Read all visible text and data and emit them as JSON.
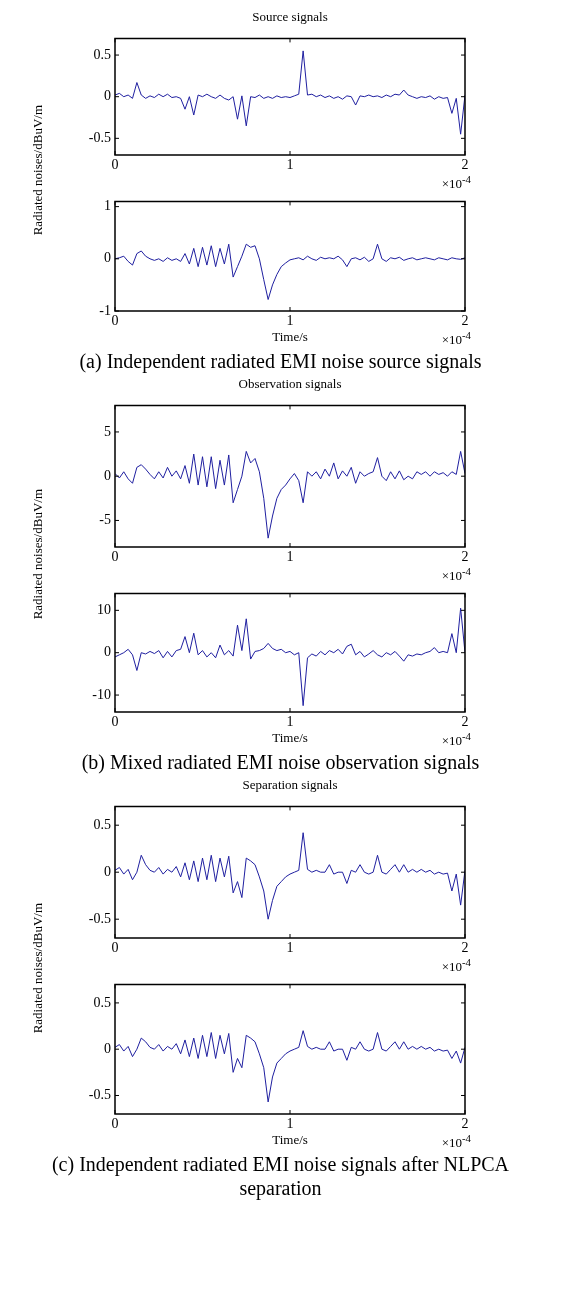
{
  "chart_data": [
    {
      "type": "line",
      "title": "Source signals",
      "ylabel": "Radiated noises/dBuV/m",
      "color": "#1f1fa0",
      "xlim": [
        0,
        2
      ],
      "xticks": [
        0,
        1,
        2
      ],
      "ylim": [
        -0.7,
        0.7
      ],
      "yticks": [
        -0.5,
        0,
        0.5
      ],
      "annotations": [
        "×10$^{-4}$"
      ],
      "x": [
        0,
        0.025,
        0.05,
        0.075,
        0.1,
        0.125,
        0.15,
        0.175,
        0.2,
        0.225,
        0.25,
        0.275,
        0.3,
        0.325,
        0.35,
        0.375,
        0.4,
        0.425,
        0.45,
        0.475,
        0.5,
        0.525,
        0.55,
        0.575,
        0.6,
        0.625,
        0.65,
        0.675,
        0.7,
        0.725,
        0.75,
        0.775,
        0.8,
        0.825,
        0.85,
        0.875,
        0.9,
        0.925,
        0.95,
        0.975,
        1,
        1.025,
        1.05,
        1.075,
        1.1,
        1.125,
        1.15,
        1.175,
        1.2,
        1.225,
        1.25,
        1.275,
        1.3,
        1.325,
        1.35,
        1.375,
        1.4,
        1.425,
        1.45,
        1.475,
        1.5,
        1.525,
        1.55,
        1.575,
        1.6,
        1.625,
        1.65,
        1.675,
        1.7,
        1.725,
        1.75,
        1.775,
        1.8,
        1.825,
        1.85,
        1.875,
        1.9,
        1.925,
        1.95,
        1.975,
        2
      ],
      "values": [
        0.02,
        0.04,
        0.0,
        0.02,
        -0.02,
        0.17,
        0.02,
        -0.02,
        0.01,
        -0.01,
        0.03,
        0.0,
        0.03,
        -0.01,
        0.0,
        -0.02,
        -0.15,
        0.0,
        -0.22,
        0.02,
        0.0,
        0.03,
        0.0,
        -0.02,
        0.02,
        -0.02,
        -0.04,
        0.0,
        -0.27,
        0.01,
        -0.35,
        0.0,
        -0.01,
        0.02,
        -0.02,
        0.0,
        -0.02,
        0.01,
        -0.01,
        0.0,
        -0.01,
        0.01,
        0.03,
        0.55,
        0.02,
        0.03,
        0.0,
        0.02,
        -0.01,
        0.01,
        -0.02,
        0.0,
        -0.03,
        0.01,
        0.0,
        -0.1,
        0.01,
        0.0,
        0.02,
        0.0,
        0.01,
        -0.01,
        0.02,
        0.0,
        0.03,
        0.02,
        0.08,
        0.02,
        0.0,
        -0.02,
        0.0,
        -0.01,
        0.01,
        -0.03,
        0.0,
        -0.02,
        -0.01,
        -0.2,
        -0.02,
        -0.45,
        0.02
      ]
    },
    {
      "type": "line",
      "xlabel": "Time/s",
      "color": "#1f1fa0",
      "xlim": [
        0,
        2
      ],
      "xticks": [
        0,
        1,
        2
      ],
      "ylim": [
        -1,
        1.1
      ],
      "yticks": [
        -1,
        0,
        1
      ],
      "annotations": [
        "×10$^{-4}$",
        "(a) Independent radiated EMI noise source signals"
      ],
      "x": [
        0,
        0.025,
        0.05,
        0.075,
        0.1,
        0.125,
        0.15,
        0.175,
        0.2,
        0.225,
        0.25,
        0.275,
        0.3,
        0.325,
        0.35,
        0.375,
        0.4,
        0.425,
        0.45,
        0.475,
        0.5,
        0.525,
        0.55,
        0.575,
        0.6,
        0.625,
        0.65,
        0.675,
        0.7,
        0.725,
        0.75,
        0.775,
        0.8,
        0.825,
        0.85,
        0.875,
        0.9,
        0.925,
        0.95,
        0.975,
        1,
        1.025,
        1.05,
        1.075,
        1.1,
        1.125,
        1.15,
        1.175,
        1.2,
        1.225,
        1.25,
        1.275,
        1.3,
        1.325,
        1.35,
        1.375,
        1.4,
        1.425,
        1.45,
        1.475,
        1.5,
        1.525,
        1.55,
        1.575,
        1.6,
        1.625,
        1.65,
        1.675,
        1.7,
        1.725,
        1.75,
        1.775,
        1.8,
        1.825,
        1.85,
        1.875,
        1.9,
        1.925,
        1.95,
        1.975,
        2
      ],
      "values": [
        0.0,
        0.02,
        0.05,
        -0.05,
        -0.12,
        0.1,
        0.15,
        0.05,
        0.0,
        -0.03,
        0.0,
        -0.05,
        0.02,
        -0.03,
        0.0,
        -0.05,
        0.1,
        -0.1,
        0.2,
        -0.15,
        0.22,
        -0.12,
        0.25,
        -0.15,
        0.2,
        -0.1,
        0.28,
        -0.35,
        -0.15,
        0.05,
        0.28,
        0.22,
        0.25,
        0.0,
        -0.4,
        -0.78,
        -0.5,
        -0.3,
        -0.15,
        -0.08,
        -0.02,
        0.0,
        0.02,
        -0.02,
        0.05,
        0.0,
        -0.03,
        0.03,
        0.0,
        0.02,
        0.0,
        0.05,
        -0.02,
        -0.15,
        0.0,
        0.02,
        -0.02,
        0.03,
        -0.05,
        0.0,
        0.28,
        0.0,
        -0.05,
        0.02,
        0.0,
        0.03,
        -0.03,
        0.0,
        0.02,
        -0.02,
        0.0,
        0.02,
        0.0,
        -0.02,
        0.02,
        0.0,
        -0.02,
        0.02,
        0.0,
        -0.01,
        0.02
      ]
    },
    {
      "type": "line",
      "title": "Observation signals",
      "ylabel": "Radiated noises/dBuV/m",
      "color": "#1f1fa0",
      "xlim": [
        0,
        2
      ],
      "xticks": [
        0,
        1,
        2
      ],
      "ylim": [
        -8,
        8
      ],
      "yticks": [
        -5,
        0,
        5
      ],
      "annotations": [
        "×10$^{-4}$"
      ],
      "x": [
        0,
        0.025,
        0.05,
        0.075,
        0.1,
        0.125,
        0.15,
        0.175,
        0.2,
        0.225,
        0.25,
        0.275,
        0.3,
        0.325,
        0.35,
        0.375,
        0.4,
        0.425,
        0.45,
        0.475,
        0.5,
        0.525,
        0.55,
        0.575,
        0.6,
        0.625,
        0.65,
        0.675,
        0.7,
        0.725,
        0.75,
        0.775,
        0.8,
        0.825,
        0.85,
        0.875,
        0.9,
        0.925,
        0.95,
        0.975,
        1,
        1.025,
        1.05,
        1.075,
        1.1,
        1.125,
        1.15,
        1.175,
        1.2,
        1.225,
        1.25,
        1.275,
        1.3,
        1.325,
        1.35,
        1.375,
        1.4,
        1.425,
        1.45,
        1.475,
        1.5,
        1.525,
        1.55,
        1.575,
        1.6,
        1.625,
        1.65,
        1.675,
        1.7,
        1.725,
        1.75,
        1.775,
        1.8,
        1.825,
        1.85,
        1.875,
        1.9,
        1.925,
        1.95,
        1.975,
        2
      ],
      "values": [
        0.3,
        -0.2,
        0.5,
        -0.3,
        -0.8,
        1.0,
        1.3,
        0.8,
        0.2,
        -0.3,
        0.5,
        -0.2,
        1.0,
        0.0,
        0.6,
        -0.3,
        1.2,
        -0.8,
        2.5,
        -1.0,
        2.2,
        -1.2,
        2.2,
        -1.4,
        1.8,
        -1.0,
        2.4,
        -3.0,
        -1.5,
        0.0,
        2.8,
        1.5,
        2.0,
        0.5,
        -2.5,
        -7.0,
        -4.5,
        -2.5,
        -1.5,
        -1.0,
        -0.3,
        0.3,
        -0.5,
        -3.0,
        0.5,
        0.0,
        0.5,
        -0.3,
        0.8,
        0.0,
        1.5,
        -0.3,
        0.6,
        0.0,
        1.0,
        -0.8,
        0.5,
        0.0,
        0.3,
        0.5,
        2.1,
        0.0,
        -0.5,
        0.5,
        -0.3,
        0.6,
        -0.4,
        0.0,
        -0.3,
        0.5,
        0.2,
        0.5,
        0.0,
        0.5,
        0.2,
        0.4,
        0.0,
        0.5,
        0.2,
        2.8,
        0.3
      ]
    },
    {
      "type": "line",
      "xlabel": "Time/s",
      "color": "#1f1fa0",
      "xlim": [
        0,
        2
      ],
      "xticks": [
        0,
        1,
        2
      ],
      "ylim": [
        -14,
        14
      ],
      "yticks": [
        -10,
        0,
        10
      ],
      "annotations": [
        "×10$^{-4}$",
        "(b) Mixed radiated EMI noise observation signals"
      ],
      "x": [
        0,
        0.025,
        0.05,
        0.075,
        0.1,
        0.125,
        0.15,
        0.175,
        0.2,
        0.225,
        0.25,
        0.275,
        0.3,
        0.325,
        0.35,
        0.375,
        0.4,
        0.425,
        0.45,
        0.475,
        0.5,
        0.525,
        0.55,
        0.575,
        0.6,
        0.625,
        0.65,
        0.675,
        0.7,
        0.725,
        0.75,
        0.775,
        0.8,
        0.825,
        0.85,
        0.875,
        0.9,
        0.925,
        0.95,
        0.975,
        1,
        1.025,
        1.05,
        1.075,
        1.1,
        1.125,
        1.15,
        1.175,
        1.2,
        1.225,
        1.25,
        1.275,
        1.3,
        1.325,
        1.35,
        1.375,
        1.4,
        1.425,
        1.45,
        1.475,
        1.5,
        1.525,
        1.55,
        1.575,
        1.6,
        1.625,
        1.65,
        1.675,
        1.7,
        1.725,
        1.75,
        1.775,
        1.8,
        1.825,
        1.85,
        1.875,
        1.9,
        1.925,
        1.95,
        1.975,
        2
      ],
      "values": [
        -1.0,
        -0.5,
        0.0,
        0.8,
        -0.5,
        -4.2,
        0.0,
        -0.3,
        0.3,
        -0.2,
        0.5,
        -1.2,
        0.3,
        -1.0,
        0.5,
        0.8,
        3.8,
        0.0,
        4.6,
        -0.5,
        0.5,
        -1.0,
        0.0,
        -1.2,
        1.8,
        -0.5,
        0.5,
        -0.8,
        6.5,
        0.5,
        8.0,
        -1.5,
        0.3,
        0.5,
        1.0,
        2.2,
        1.0,
        0.5,
        0.8,
        0.0,
        0.3,
        -0.5,
        0.0,
        -12.5,
        -1.2,
        -0.3,
        -0.8,
        0.3,
        -0.5,
        0.5,
        0.0,
        0.8,
        -0.3,
        1.5,
        2.0,
        -0.5,
        0.3,
        -1.0,
        -0.3,
        0.5,
        -0.5,
        -1.0,
        0.0,
        -0.5,
        0.3,
        -0.8,
        -2.0,
        -0.5,
        -0.8,
        -0.3,
        -0.5,
        0.0,
        0.3,
        1.2,
        0.0,
        0.3,
        0.0,
        4.5,
        0.0,
        10.5,
        0.0
      ]
    },
    {
      "type": "line",
      "title": "Separation signals",
      "ylabel": "Radiated noises/dBuV/m",
      "color": "#1f1fa0",
      "xlim": [
        0,
        2
      ],
      "xticks": [
        0,
        1,
        2
      ],
      "ylim": [
        -0.7,
        0.7
      ],
      "yticks": [
        -0.5,
        0,
        0.5
      ],
      "annotations": [
        "×10$^{-4}$"
      ],
      "x": [
        0,
        0.025,
        0.05,
        0.075,
        0.1,
        0.125,
        0.15,
        0.175,
        0.2,
        0.225,
        0.25,
        0.275,
        0.3,
        0.325,
        0.35,
        0.375,
        0.4,
        0.425,
        0.45,
        0.475,
        0.5,
        0.525,
        0.55,
        0.575,
        0.6,
        0.625,
        0.65,
        0.675,
        0.7,
        0.725,
        0.75,
        0.775,
        0.8,
        0.825,
        0.85,
        0.875,
        0.9,
        0.925,
        0.95,
        0.975,
        1,
        1.025,
        1.05,
        1.075,
        1.1,
        1.125,
        1.15,
        1.175,
        1.2,
        1.225,
        1.25,
        1.275,
        1.3,
        1.325,
        1.35,
        1.375,
        1.4,
        1.425,
        1.45,
        1.475,
        1.5,
        1.525,
        1.55,
        1.575,
        1.6,
        1.625,
        1.65,
        1.675,
        1.7,
        1.725,
        1.75,
        1.775,
        1.8,
        1.825,
        1.85,
        1.875,
        1.9,
        1.925,
        1.95,
        1.975,
        2
      ],
      "values": [
        0.02,
        0.05,
        -0.02,
        0.03,
        -0.08,
        0.0,
        0.18,
        0.08,
        0.02,
        0.0,
        0.05,
        -0.02,
        0.03,
        0.0,
        0.06,
        -0.05,
        0.1,
        -0.08,
        0.12,
        -0.1,
        0.15,
        -0.08,
        0.18,
        -0.1,
        0.15,
        -0.05,
        0.17,
        -0.22,
        -0.1,
        -0.27,
        0.15,
        0.12,
        0.08,
        -0.05,
        -0.2,
        -0.5,
        -0.3,
        -0.15,
        -0.1,
        -0.05,
        -0.02,
        0.0,
        0.02,
        0.42,
        0.03,
        0.0,
        0.02,
        0.0,
        0.0,
        0.08,
        -0.02,
        0.0,
        0.0,
        -0.12,
        0.02,
        0.0,
        0.08,
        0.0,
        -0.02,
        0.0,
        0.18,
        0.0,
        -0.02,
        0.03,
        0.08,
        0.0,
        0.08,
        0.0,
        0.03,
        0.0,
        0.03,
        0.0,
        0.02,
        -0.02,
        0.0,
        -0.02,
        -0.01,
        -0.2,
        -0.02,
        -0.35,
        0.02
      ]
    },
    {
      "type": "line",
      "xlabel": "Time/s",
      "color": "#1f1fa0",
      "xlim": [
        0,
        2
      ],
      "xticks": [
        0,
        1,
        2
      ],
      "ylim": [
        -0.7,
        0.7
      ],
      "yticks": [
        -0.5,
        0,
        0.5
      ],
      "annotations": [
        "×10$^{-4}$",
        "(c) Independent radiated EMI noise signals after NLPCA separation"
      ],
      "x": [
        0,
        0.025,
        0.05,
        0.075,
        0.1,
        0.125,
        0.15,
        0.175,
        0.2,
        0.225,
        0.25,
        0.275,
        0.3,
        0.325,
        0.35,
        0.375,
        0.4,
        0.425,
        0.45,
        0.475,
        0.5,
        0.525,
        0.55,
        0.575,
        0.6,
        0.625,
        0.65,
        0.675,
        0.7,
        0.725,
        0.75,
        0.775,
        0.8,
        0.825,
        0.85,
        0.875,
        0.9,
        0.925,
        0.95,
        0.975,
        1,
        1.025,
        1.05,
        1.075,
        1.1,
        1.125,
        1.15,
        1.175,
        1.2,
        1.225,
        1.25,
        1.275,
        1.3,
        1.325,
        1.35,
        1.375,
        1.4,
        1.425,
        1.45,
        1.475,
        1.5,
        1.525,
        1.55,
        1.575,
        1.6,
        1.625,
        1.65,
        1.675,
        1.7,
        1.725,
        1.75,
        1.775,
        1.8,
        1.825,
        1.85,
        1.875,
        1.9,
        1.925,
        1.95,
        1.975,
        2
      ],
      "values": [
        0.02,
        0.05,
        -0.02,
        0.03,
        -0.08,
        0.0,
        0.12,
        0.08,
        0.02,
        0.0,
        0.05,
        -0.02,
        0.03,
        0.0,
        0.06,
        -0.05,
        0.1,
        -0.08,
        0.12,
        -0.1,
        0.15,
        -0.08,
        0.18,
        -0.1,
        0.15,
        -0.05,
        0.17,
        -0.25,
        -0.1,
        -0.2,
        0.15,
        0.12,
        0.08,
        -0.05,
        -0.2,
        -0.57,
        -0.3,
        -0.15,
        -0.1,
        -0.05,
        -0.02,
        0.0,
        0.02,
        0.2,
        0.03,
        0.0,
        0.02,
        0.0,
        0.0,
        0.08,
        -0.02,
        0.0,
        0.0,
        -0.12,
        0.02,
        0.0,
        0.08,
        0.0,
        -0.02,
        0.0,
        0.18,
        0.0,
        -0.02,
        0.03,
        0.08,
        0.0,
        0.08,
        0.0,
        0.03,
        0.0,
        0.03,
        0.0,
        0.02,
        -0.02,
        0.0,
        -0.02,
        -0.01,
        -0.1,
        -0.02,
        -0.15,
        0.02
      ]
    }
  ]
}
